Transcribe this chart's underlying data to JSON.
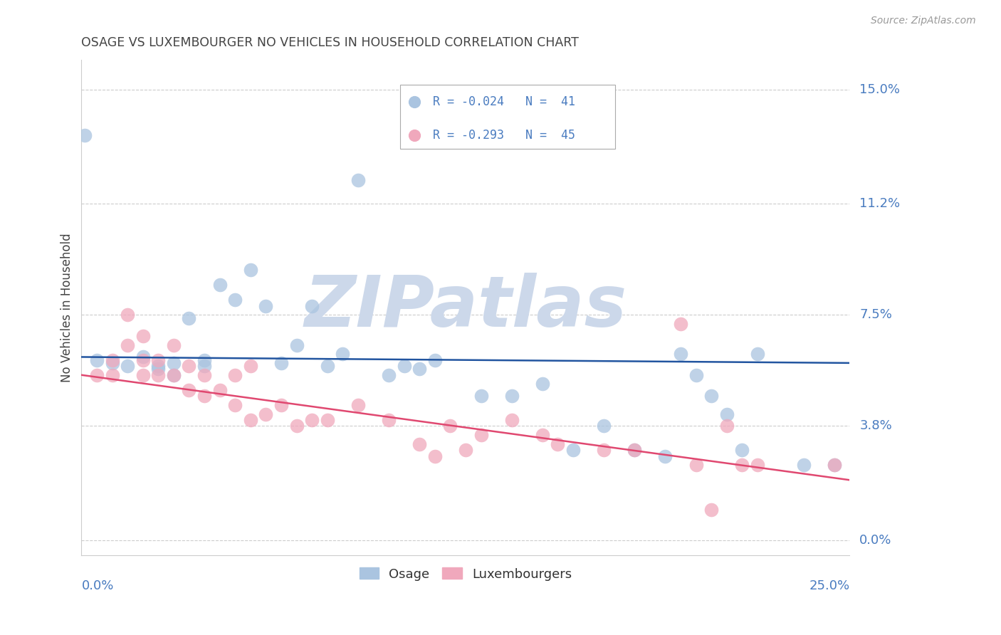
{
  "title": "OSAGE VS LUXEMBOURGER NO VEHICLES IN HOUSEHOLD CORRELATION CHART",
  "source": "Source: ZipAtlas.com",
  "xlabel_ticks": [
    "0.0%",
    "25.0%"
  ],
  "ylabel_ticks": [
    "0.0%",
    "3.8%",
    "7.5%",
    "11.2%",
    "15.0%"
  ],
  "ylabel_label": "No Vehicles in Household",
  "xlim": [
    0.0,
    0.25
  ],
  "ylim": [
    -0.005,
    0.16
  ],
  "ytick_vals": [
    0.0,
    0.038,
    0.075,
    0.112,
    0.15
  ],
  "legend_r1": "R = -0.024",
  "legend_n1": "N =  41",
  "legend_r2": "R = -0.293",
  "legend_n2": "N =  45",
  "osage_color": "#aac4e0",
  "luxembourger_color": "#f0a8bc",
  "line_osage_color": "#2255a0",
  "line_luxembourger_color": "#e04870",
  "watermark_color": "#ccd8ea",
  "background_color": "#ffffff",
  "grid_color": "#cccccc",
  "axis_label_color": "#4a7cc0",
  "title_color": "#444444",
  "ylabel_color": "#444444",
  "source_color": "#999999",
  "legend_text_color": "#333333",
  "bottom_legend_color": "#333333",
  "osage_x": [
    0.001,
    0.005,
    0.01,
    0.015,
    0.02,
    0.025,
    0.025,
    0.03,
    0.03,
    0.035,
    0.04,
    0.04,
    0.045,
    0.05,
    0.055,
    0.06,
    0.065,
    0.07,
    0.075,
    0.08,
    0.085,
    0.09,
    0.1,
    0.105,
    0.11,
    0.115,
    0.13,
    0.14,
    0.15,
    0.16,
    0.17,
    0.18,
    0.19,
    0.195,
    0.2,
    0.205,
    0.21,
    0.215,
    0.22,
    0.235,
    0.245
  ],
  "osage_y": [
    0.135,
    0.06,
    0.059,
    0.058,
    0.061,
    0.058,
    0.057,
    0.059,
    0.055,
    0.074,
    0.06,
    0.058,
    0.085,
    0.08,
    0.09,
    0.078,
    0.059,
    0.065,
    0.078,
    0.058,
    0.062,
    0.12,
    0.055,
    0.058,
    0.057,
    0.06,
    0.048,
    0.048,
    0.052,
    0.03,
    0.038,
    0.03,
    0.028,
    0.062,
    0.055,
    0.048,
    0.042,
    0.03,
    0.062,
    0.025,
    0.025
  ],
  "luxembourger_x": [
    0.005,
    0.01,
    0.01,
    0.015,
    0.015,
    0.02,
    0.02,
    0.02,
    0.025,
    0.025,
    0.03,
    0.03,
    0.035,
    0.035,
    0.04,
    0.04,
    0.045,
    0.05,
    0.05,
    0.055,
    0.055,
    0.06,
    0.065,
    0.07,
    0.075,
    0.08,
    0.09,
    0.1,
    0.11,
    0.115,
    0.12,
    0.125,
    0.13,
    0.14,
    0.15,
    0.155,
    0.17,
    0.18,
    0.195,
    0.2,
    0.205,
    0.21,
    0.215,
    0.22,
    0.245
  ],
  "luxembourger_y": [
    0.055,
    0.06,
    0.055,
    0.075,
    0.065,
    0.068,
    0.06,
    0.055,
    0.06,
    0.055,
    0.065,
    0.055,
    0.058,
    0.05,
    0.055,
    0.048,
    0.05,
    0.055,
    0.045,
    0.058,
    0.04,
    0.042,
    0.045,
    0.038,
    0.04,
    0.04,
    0.045,
    0.04,
    0.032,
    0.028,
    0.038,
    0.03,
    0.035,
    0.04,
    0.035,
    0.032,
    0.03,
    0.03,
    0.072,
    0.025,
    0.01,
    0.038,
    0.025,
    0.025,
    0.025
  ]
}
